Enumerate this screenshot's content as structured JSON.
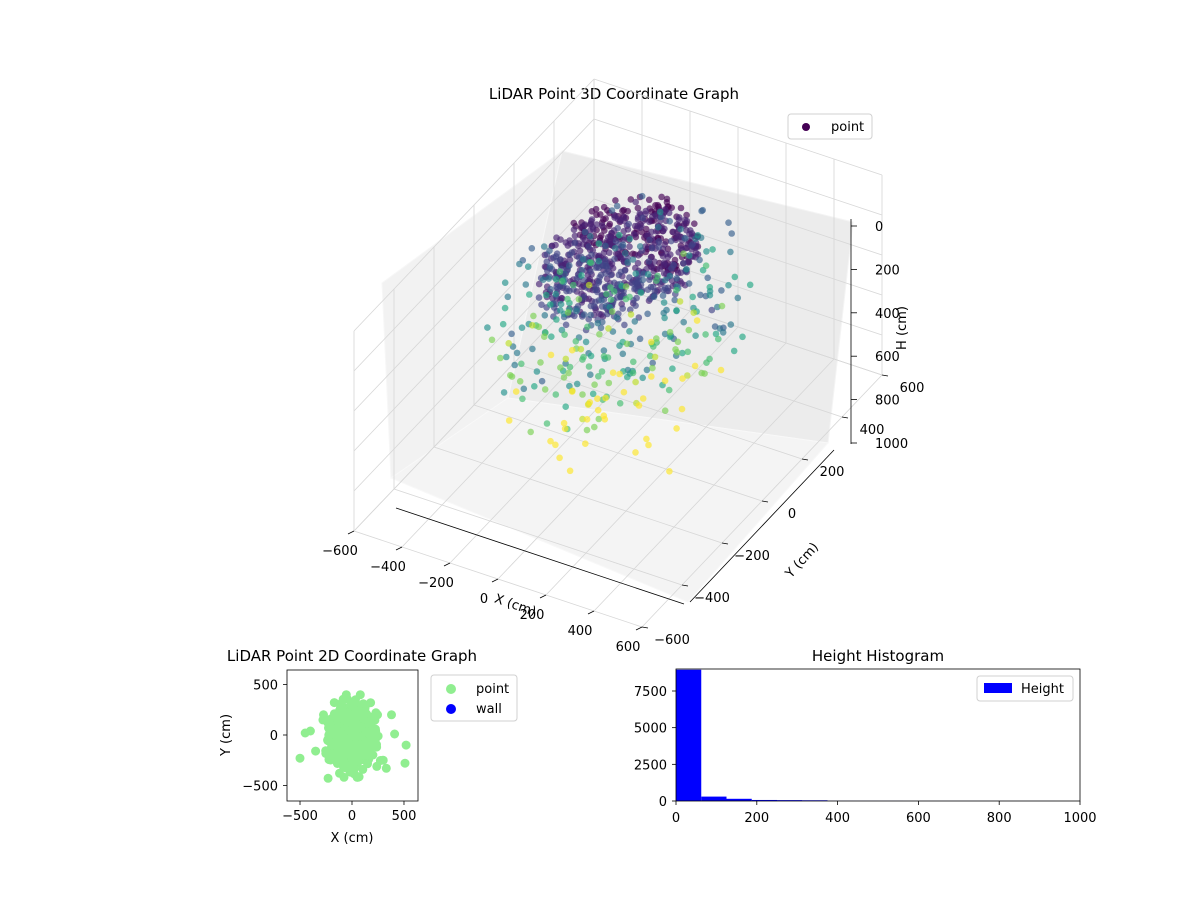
{
  "chart_data": [
    {
      "type": "scatter",
      "projection": "3d",
      "title": "LiDAR Point 3D Coordinate Graph",
      "xlabel": "X (cm)",
      "ylabel": "Y (cm)",
      "zlabel": "H (cm)",
      "xlim": [
        -600,
        600
      ],
      "ylim": [
        -600,
        600
      ],
      "zlim": [
        1000,
        0
      ],
      "xticks": [
        "−600",
        "−400",
        "−200",
        "0",
        "200",
        "400",
        "600"
      ],
      "yticks": [
        "−600",
        "−400",
        "−200",
        "0",
        "200",
        "400",
        "600"
      ],
      "zticks": [
        "0",
        "200",
        "400",
        "600",
        "800",
        "1000"
      ],
      "colormap": "viridis",
      "legend": {
        "location": "upper right",
        "entries": [
          {
            "label": "point",
            "color": "#440154"
          }
        ]
      },
      "series": [
        {
          "name": "point",
          "n_points_estimate": 1500,
          "description_of_distribution": {
            "x_range": [
              -450,
              450
            ],
            "y_range": [
              -450,
              450
            ],
            "h_range": [
              0,
              900
            ],
            "dense_core_h": [
              0,
              150
            ]
          }
        }
      ],
      "grid": true
    },
    {
      "type": "scatter",
      "title": "LiDAR Point 2D Coordinate Graph",
      "xlabel": "X (cm)",
      "ylabel": "Y (cm)",
      "xlim": [
        -630,
        630
      ],
      "ylim": [
        -650,
        650
      ],
      "xticks": [
        "−500",
        "0",
        "500"
      ],
      "yticks": [
        "500",
        "0",
        "−500"
      ],
      "legend": {
        "location": "outside right",
        "entries": [
          {
            "label": "point",
            "color": "#90ee90"
          },
          {
            "label": "wall",
            "color": "#0000ff"
          }
        ]
      },
      "series": [
        {
          "name": "point",
          "color": "#90ee90",
          "x_range": [
            -500,
            520
          ],
          "y_range": [
            -500,
            400
          ]
        },
        {
          "name": "wall",
          "color": "#0000ff",
          "n_points": 0
        }
      ]
    },
    {
      "type": "bar",
      "subtype": "histogram",
      "title": "Height Histogram",
      "xlim": [
        0,
        1000
      ],
      "ylim": [
        0,
        9000
      ],
      "xticks": [
        "0",
        "200",
        "400",
        "600",
        "800",
        "1000"
      ],
      "yticks": [
        "0",
        "2500",
        "5000",
        "7500"
      ],
      "legend": {
        "location": "upper right",
        "entries": [
          {
            "label": "Height",
            "color": "#0000ff"
          }
        ]
      },
      "bin_width": 62.5,
      "bins": [
        {
          "x0": 0,
          "x1": 62.5,
          "count": 8950
        },
        {
          "x0": 62.5,
          "x1": 125,
          "count": 300
        },
        {
          "x0": 125,
          "x1": 187.5,
          "count": 150
        },
        {
          "x0": 187.5,
          "x1": 250,
          "count": 70
        },
        {
          "x0": 250,
          "x1": 312.5,
          "count": 60
        },
        {
          "x0": 312.5,
          "x1": 375,
          "count": 50
        },
        {
          "x0": 375,
          "x1": 437.5,
          "count": 10
        },
        {
          "x0": 437.5,
          "x1": 500,
          "count": 8
        },
        {
          "x0": 500,
          "x1": 562.5,
          "count": 6
        },
        {
          "x0": 562.5,
          "x1": 625,
          "count": 5
        },
        {
          "x0": 625,
          "x1": 687.5,
          "count": 5
        },
        {
          "x0": 687.5,
          "x1": 750,
          "count": 4
        },
        {
          "x0": 750,
          "x1": 812.5,
          "count": 4
        },
        {
          "x0": 812.5,
          "x1": 875,
          "count": 3
        },
        {
          "x0": 875,
          "x1": 937.5,
          "count": 3
        },
        {
          "x0": 937.5,
          "x1": 1000,
          "count": 2
        }
      ],
      "color": "#0000ff"
    }
  ]
}
